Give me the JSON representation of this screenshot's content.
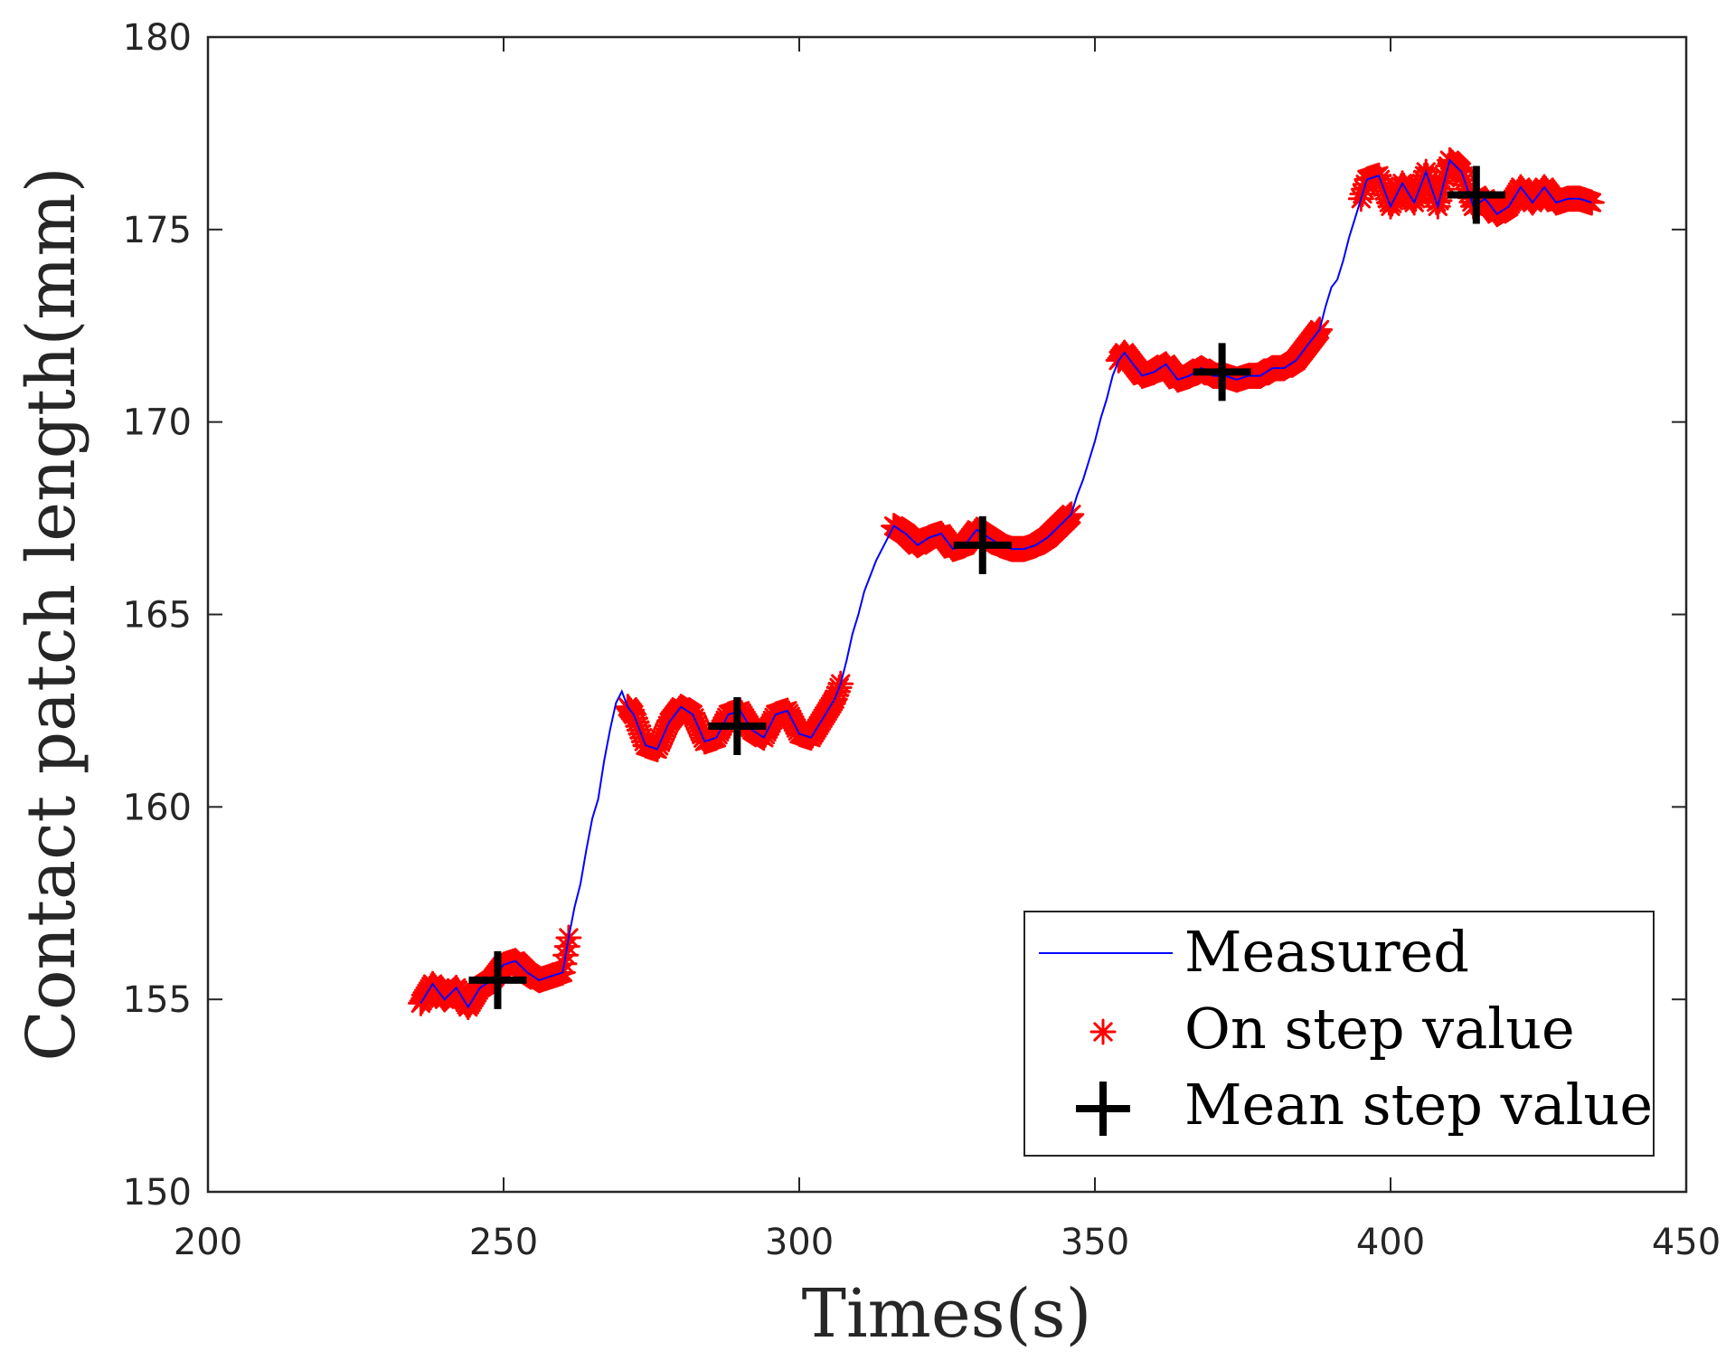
{
  "chart_data": {
    "type": "line",
    "xlabel": "Times(s)",
    "ylabel": "Contact patch length(mm)",
    "xlim": [
      200,
      450
    ],
    "ylim": [
      150,
      180
    ],
    "xticks": [
      "200",
      "250",
      "300",
      "350",
      "400",
      "450"
    ],
    "yticks": [
      "150",
      "155",
      "160",
      "165",
      "170",
      "175",
      "180"
    ],
    "legend": {
      "position": "bottom-right",
      "entries": [
        "Measured",
        "On step value",
        "Mean step value"
      ]
    },
    "series": [
      {
        "name": "Measured",
        "style": "line",
        "x": [
          236,
          238,
          240,
          242,
          244,
          246,
          248,
          250,
          252,
          254,
          256,
          258,
          260,
          261,
          262,
          263,
          264,
          265,
          266,
          267,
          268,
          269,
          270,
          271,
          272,
          274,
          276,
          278,
          280,
          282,
          284,
          286,
          288,
          290,
          292,
          294,
          296,
          298,
          300,
          302,
          304,
          306,
          307,
          308,
          309,
          310,
          311,
          312,
          313,
          314,
          315,
          316,
          318,
          320,
          322,
          324,
          326,
          328,
          330,
          332,
          334,
          336,
          338,
          340,
          342,
          344,
          346,
          347,
          348,
          349,
          350,
          351,
          352,
          353,
          354,
          355,
          356,
          358,
          360,
          362,
          364,
          366,
          368,
          370,
          372,
          374,
          376,
          378,
          380,
          382,
          384,
          386,
          388,
          389,
          390,
          391,
          392,
          393,
          394,
          395,
          396,
          398,
          400,
          402,
          404,
          406,
          408,
          410,
          412,
          414,
          416,
          418,
          420,
          422,
          424,
          426,
          428,
          430,
          432,
          434
        ],
        "y": [
          154.9,
          155.4,
          155.0,
          155.3,
          154.8,
          155.3,
          155.5,
          155.9,
          156.0,
          155.7,
          155.5,
          155.6,
          155.7,
          156.6,
          157.4,
          158.0,
          158.9,
          159.7,
          160.2,
          161.2,
          162.0,
          162.7,
          163.0,
          162.6,
          162.4,
          161.6,
          161.5,
          162.2,
          162.6,
          162.4,
          161.7,
          161.8,
          162.4,
          162.5,
          162.0,
          161.8,
          162.4,
          162.5,
          161.9,
          161.8,
          162.3,
          162.8,
          163.2,
          163.8,
          164.5,
          165.0,
          165.6,
          166.0,
          166.4,
          166.7,
          167.0,
          167.3,
          167.1,
          166.8,
          167.0,
          167.1,
          166.7,
          166.8,
          167.2,
          167.0,
          166.8,
          166.7,
          166.7,
          166.8,
          167.0,
          167.3,
          167.6,
          168.1,
          168.5,
          169.0,
          169.5,
          170.1,
          170.6,
          171.2,
          171.6,
          171.8,
          171.6,
          171.2,
          171.3,
          171.5,
          171.1,
          171.2,
          171.4,
          171.2,
          171.2,
          171.1,
          171.2,
          171.2,
          171.4,
          171.4,
          171.6,
          172.0,
          172.4,
          173.0,
          173.5,
          173.7,
          174.2,
          174.8,
          175.3,
          175.8,
          176.3,
          176.4,
          175.6,
          176.2,
          175.7,
          176.5,
          175.6,
          176.8,
          176.5,
          175.6,
          175.8,
          175.4,
          175.6,
          176.1,
          175.7,
          176.1,
          175.7,
          175.8,
          175.8,
          175.7
        ]
      },
      {
        "name": "On step value",
        "style": "markers",
        "steps": [
          {
            "x_start": 236,
            "x_end": 261,
            "center": 155.5
          },
          {
            "x_start": 271,
            "x_end": 307,
            "center": 162.1
          },
          {
            "x_start": 316,
            "x_end": 346,
            "center": 166.9
          },
          {
            "x_start": 354,
            "x_end": 388,
            "center": 171.3
          },
          {
            "x_start": 395,
            "x_end": 434,
            "center": 175.9
          }
        ]
      },
      {
        "name": "Mean step value",
        "style": "markers",
        "x": [
          249,
          289.5,
          331,
          371.5,
          414.5
        ],
        "y": [
          155.5,
          162.1,
          166.8,
          171.3,
          175.9
        ]
      }
    ],
    "colors": {
      "measured": "#0000ff",
      "on_step": "#ff0000",
      "mean": "#000000",
      "axis": "#262626"
    }
  }
}
